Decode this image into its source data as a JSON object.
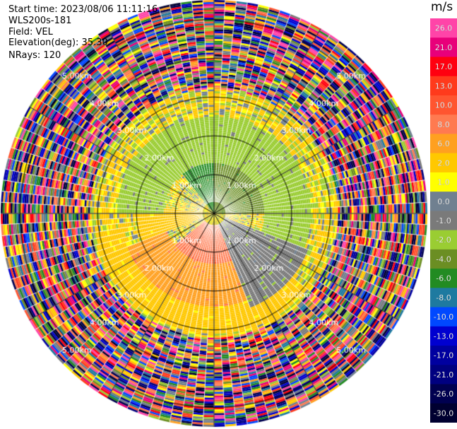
{
  "header": {
    "start_time": "Start time: 2023/08/06 11:11:16",
    "instrument": "WLS200s-181",
    "field": "Field: VEL",
    "elevation": "Elevation(deg): 35.30",
    "nrays": "NRays: 120"
  },
  "colorbar": {
    "unit": "m/s",
    "ticks": [
      "26.0",
      "21.0",
      "17.0",
      "13.0",
      "10.0",
      "8.0",
      "6.0",
      "2.0",
      "1.0",
      "0.0",
      "-1.0",
      "-2.0",
      "-4.0",
      "-6.0",
      "-8.0",
      "-10.0",
      "-13.0",
      "-17.0",
      "-21.0",
      "-26.0",
      "-30.0"
    ],
    "colors": [
      "#ff44a8",
      "#e8007a",
      "#ff0010",
      "#ff3a1c",
      "#ff5530",
      "#ff7a50",
      "#ffa020",
      "#ffc800",
      "#ffff00",
      "#708090",
      "#7a7a7a",
      "#9acd32",
      "#6b8e23",
      "#228b22",
      "#1e7aa0",
      "#0048ff",
      "#0000d0",
      "#0000a0",
      "#000080",
      "#000050",
      "#000030"
    ]
  },
  "chart_data": {
    "type": "heatmap",
    "projection": "polar (PPI scan)",
    "field": "VEL",
    "units": "m/s",
    "color_range": [
      -30.0,
      26.0
    ],
    "range_rings": [
      {
        "range_km": 1.0,
        "label": "1.00km"
      },
      {
        "range_km": 2.0,
        "label": "2.00km"
      },
      {
        "range_km": 3.0,
        "label": "3.00km"
      },
      {
        "range_km": 4.0,
        "label": "4.00km"
      },
      {
        "range_km": 5.0,
        "label": "5.00km"
      }
    ],
    "rays": 120,
    "max_range_km": 5.5,
    "grid": true,
    "velocity_zones": [
      {
        "azimuth_deg": [
          320,
          360
        ],
        "range_km": [
          0.0,
          1.3
        ],
        "velocity_ms": -6.0
      },
      {
        "azimuth_deg": [
          0,
          90
        ],
        "range_km": [
          0.0,
          1.3
        ],
        "velocity_ms": -5.0
      },
      {
        "azimuth_deg": [
          270,
          360
        ],
        "range_km": [
          1.3,
          2.5
        ],
        "velocity_ms": -2.0
      },
      {
        "azimuth_deg": [
          0,
          110
        ],
        "range_km": [
          1.3,
          2.5
        ],
        "velocity_ms": -2.0
      },
      {
        "azimuth_deg": [
          110,
          160
        ],
        "range_km": [
          0.3,
          2.6
        ],
        "velocity_ms": -1.0
      },
      {
        "azimuth_deg": [
          160,
          230
        ],
        "range_km": [
          0.3,
          1.3
        ],
        "velocity_ms": 8.0
      },
      {
        "azimuth_deg": [
          160,
          250
        ],
        "range_km": [
          1.3,
          2.4
        ],
        "velocity_ms": 6.0
      },
      {
        "azimuth_deg": [
          250,
          275
        ],
        "range_km": [
          0.3,
          2.0
        ],
        "velocity_ms": 2.0
      },
      {
        "azimuth_deg": [
          130,
          260
        ],
        "range_km": [
          2.4,
          3.1
        ],
        "velocity_ms": 2.0
      }
    ]
  }
}
